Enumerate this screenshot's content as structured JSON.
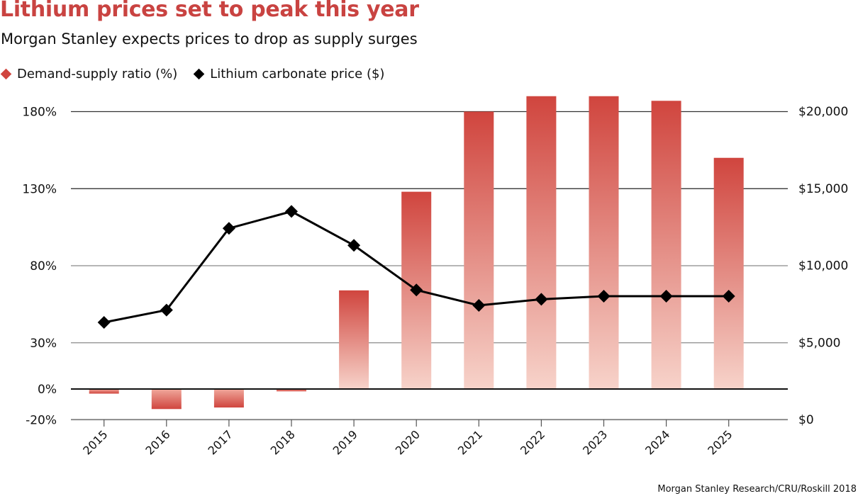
{
  "header": {
    "title": "Lithium prices set to peak this year",
    "subtitle": "Morgan Stanley expects prices to drop as supply surges"
  },
  "legend": [
    {
      "label": "Demand-supply ratio (%)",
      "icon": "diamond-icon",
      "color": "#d0453e"
    },
    {
      "label": "Lithium carbonate price ($)",
      "icon": "diamond-icon",
      "color": "#000000"
    }
  ],
  "source": "Morgan Stanley Research/CRU/Roskill 2018",
  "chart_data": {
    "type": "bar+line",
    "title": "Lithium prices set to peak this year",
    "subtitle": "Morgan Stanley expects prices to drop as supply surges",
    "categories": [
      "2015",
      "2016",
      "2017",
      "2018",
      "2019",
      "2020",
      "2021",
      "2022",
      "2023",
      "2024",
      "2025"
    ],
    "series": [
      {
        "name": "Demand-supply ratio (%)",
        "type": "bar",
        "axis": "left",
        "color_top": "#d0453e",
        "color_bottom": "#f7d3ca",
        "values": [
          -3,
          -13,
          -12,
          -1.5,
          64,
          128,
          180,
          190,
          190,
          187,
          150
        ]
      },
      {
        "name": "Lithium carbonate price ($)",
        "type": "line",
        "axis": "right",
        "color": "#000000",
        "marker": "diamond",
        "values": [
          6300,
          7100,
          12400,
          13500,
          11300,
          8400,
          7400,
          7800,
          8000,
          8000,
          8000
        ]
      }
    ],
    "y_left": {
      "ticks": [
        -20,
        0,
        30,
        80,
        130,
        180
      ],
      "tick_labels": [
        "-20%",
        "0%",
        "30%",
        "80%",
        "130%",
        "180%"
      ],
      "ylim": [
        -20,
        180
      ]
    },
    "y_right": {
      "ticks": [
        0,
        5000,
        10000,
        15000,
        20000
      ],
      "tick_labels": [
        "$0",
        "$5,000",
        "$10,000",
        "$15,000",
        "$20,000"
      ],
      "ylim": [
        0,
        20000
      ]
    },
    "xlabel": "",
    "grid": true,
    "legend_position": "top-left"
  }
}
